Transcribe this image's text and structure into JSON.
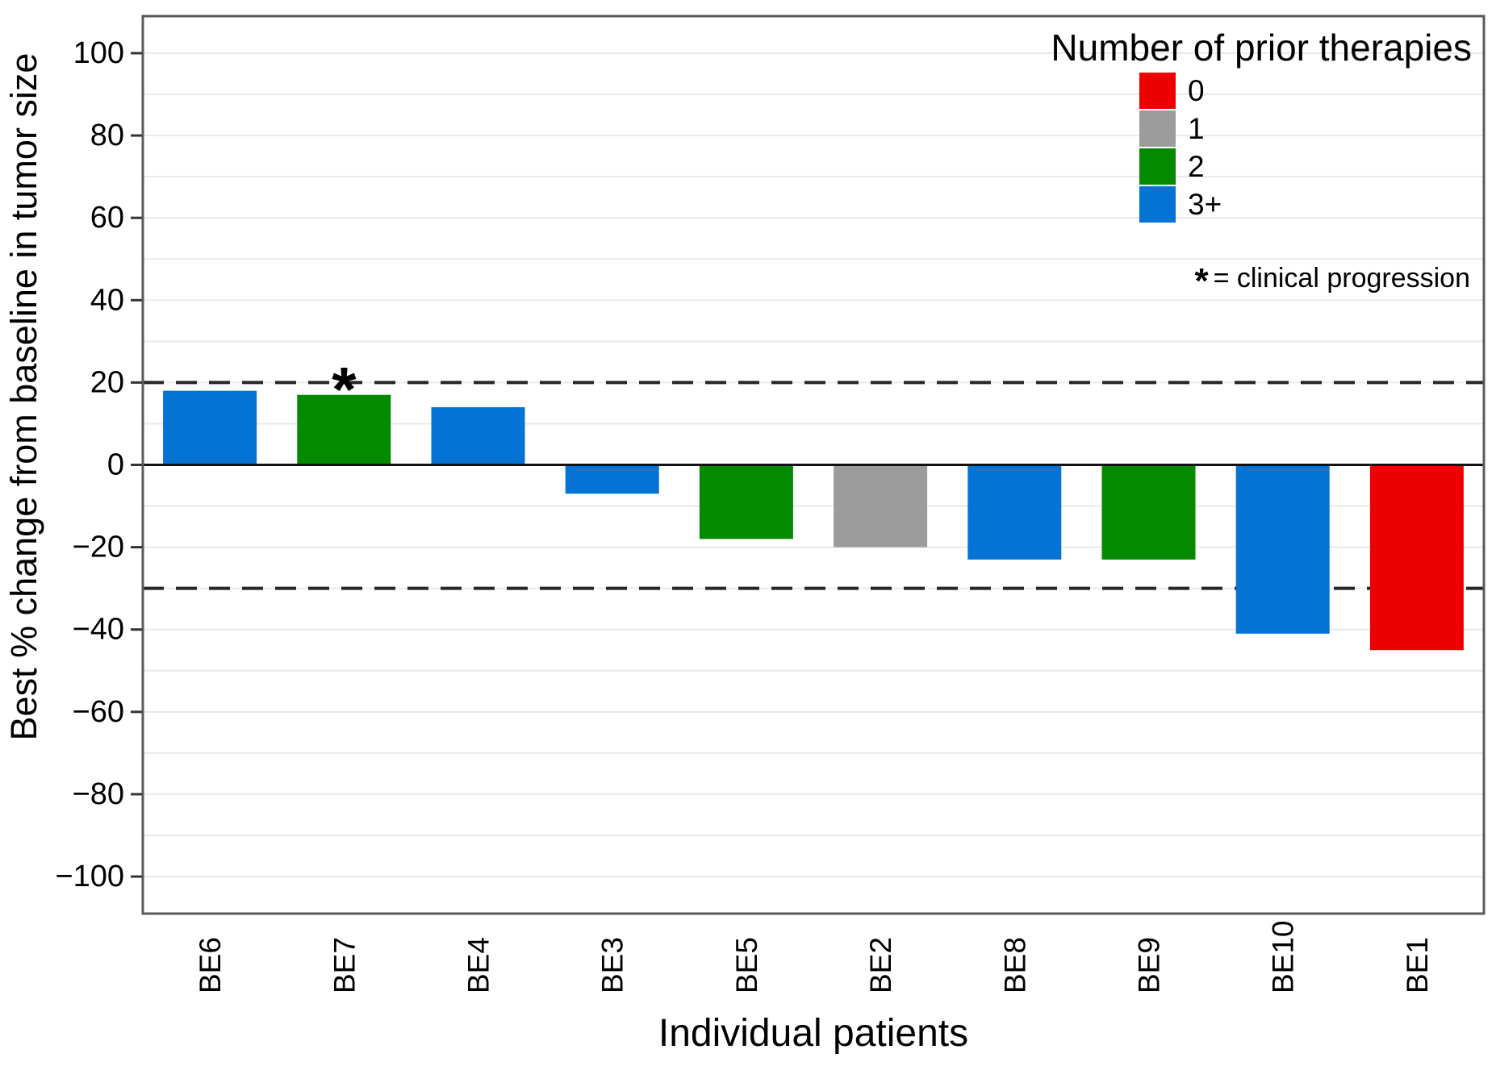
{
  "chart_data": {
    "type": "bar",
    "subtype": "waterfall",
    "title": "",
    "xlabel": "Individual patients",
    "ylabel": "Best % change from baseline in tumor size",
    "categories": [
      "BE6",
      "BE7",
      "BE4",
      "BE3",
      "BE5",
      "BE2",
      "BE8",
      "BE9",
      "BE10",
      "BE1"
    ],
    "values": [
      18,
      17,
      14,
      -7,
      -18,
      -20,
      -23,
      -23,
      -41,
      -45
    ],
    "prior_therapies": [
      "3+",
      "2",
      "3+",
      "3+",
      "2",
      "1",
      "3+",
      "2",
      "3+",
      "0"
    ],
    "clinical_progression_categories": [
      "BE7"
    ],
    "ylim": [
      -109,
      109
    ],
    "yticks": [
      -100,
      -80,
      -60,
      -40,
      -20,
      0,
      20,
      40,
      60,
      80,
      100
    ],
    "minor_grid_step": 10,
    "grid": true,
    "reference_lines": [
      {
        "y": 20,
        "style": "dashed"
      },
      {
        "y": -30,
        "style": "dashed"
      },
      {
        "y": 0,
        "style": "solid"
      }
    ],
    "legend": {
      "title": "Number of prior therapies",
      "position": "top-right",
      "entries": [
        {
          "label": "0",
          "color": "#EE0000"
        },
        {
          "label": "1",
          "color": "#9C9C9C"
        },
        {
          "label": "2",
          "color": "#048A00"
        },
        {
          "label": "3+",
          "color": "#0473D3"
        }
      ]
    },
    "annotation": {
      "symbol": "*",
      "text": "= clinical progression"
    }
  },
  "colors": {
    "gridline": "#EAEAEA",
    "axis_frame": "#5A5A5A",
    "tick": "#333333",
    "reference_line": "#262626",
    "zero_line": "#111111",
    "text": "#000000"
  }
}
